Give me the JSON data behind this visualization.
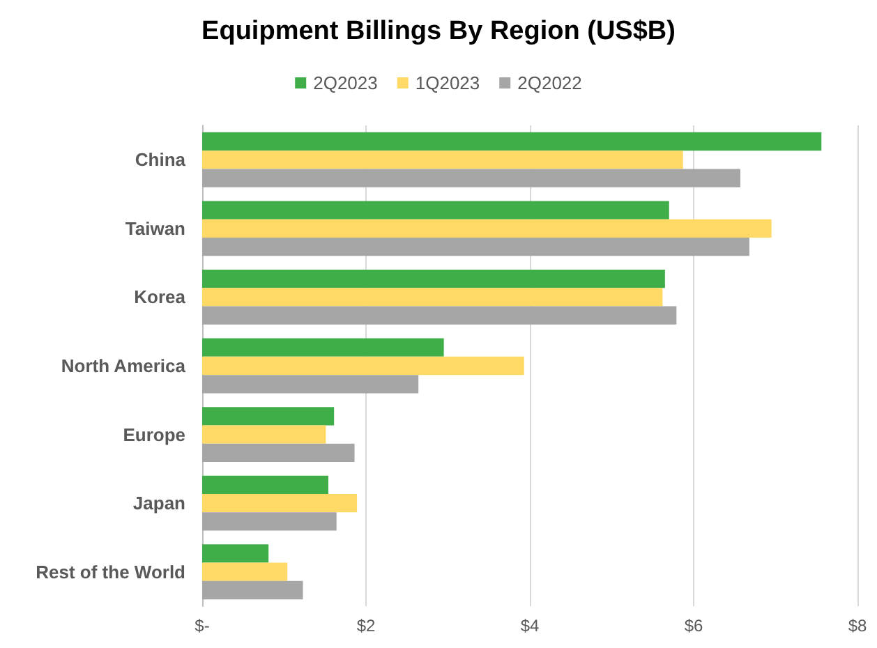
{
  "chart_data": {
    "type": "bar",
    "orientation": "horizontal",
    "title": "Equipment Billings By Region (US$B)",
    "categories": [
      "China",
      "Taiwan",
      "Korea",
      "North America",
      "Europe",
      "Japan",
      "Rest of the World"
    ],
    "series": [
      {
        "name": "2Q2023",
        "color": "#3fae49",
        "values": [
          7.56,
          5.7,
          5.65,
          2.95,
          1.61,
          1.54,
          0.81
        ]
      },
      {
        "name": "1Q2023",
        "color": "#ffd966",
        "values": [
          5.87,
          6.95,
          5.62,
          3.93,
          1.51,
          1.89,
          1.04
        ]
      },
      {
        "name": "2Q2022",
        "color": "#a6a6a6",
        "values": [
          6.57,
          6.68,
          5.79,
          2.64,
          1.86,
          1.64,
          1.23
        ]
      }
    ],
    "xlim": [
      0,
      8
    ],
    "xticks": [
      {
        "value": 0,
        "label": "$-"
      },
      {
        "value": 2,
        "label": "$2"
      },
      {
        "value": 4,
        "label": "$4"
      },
      {
        "value": 6,
        "label": "$6"
      },
      {
        "value": 8,
        "label": "$8"
      }
    ],
    "grid": "x",
    "legend": "top"
  }
}
